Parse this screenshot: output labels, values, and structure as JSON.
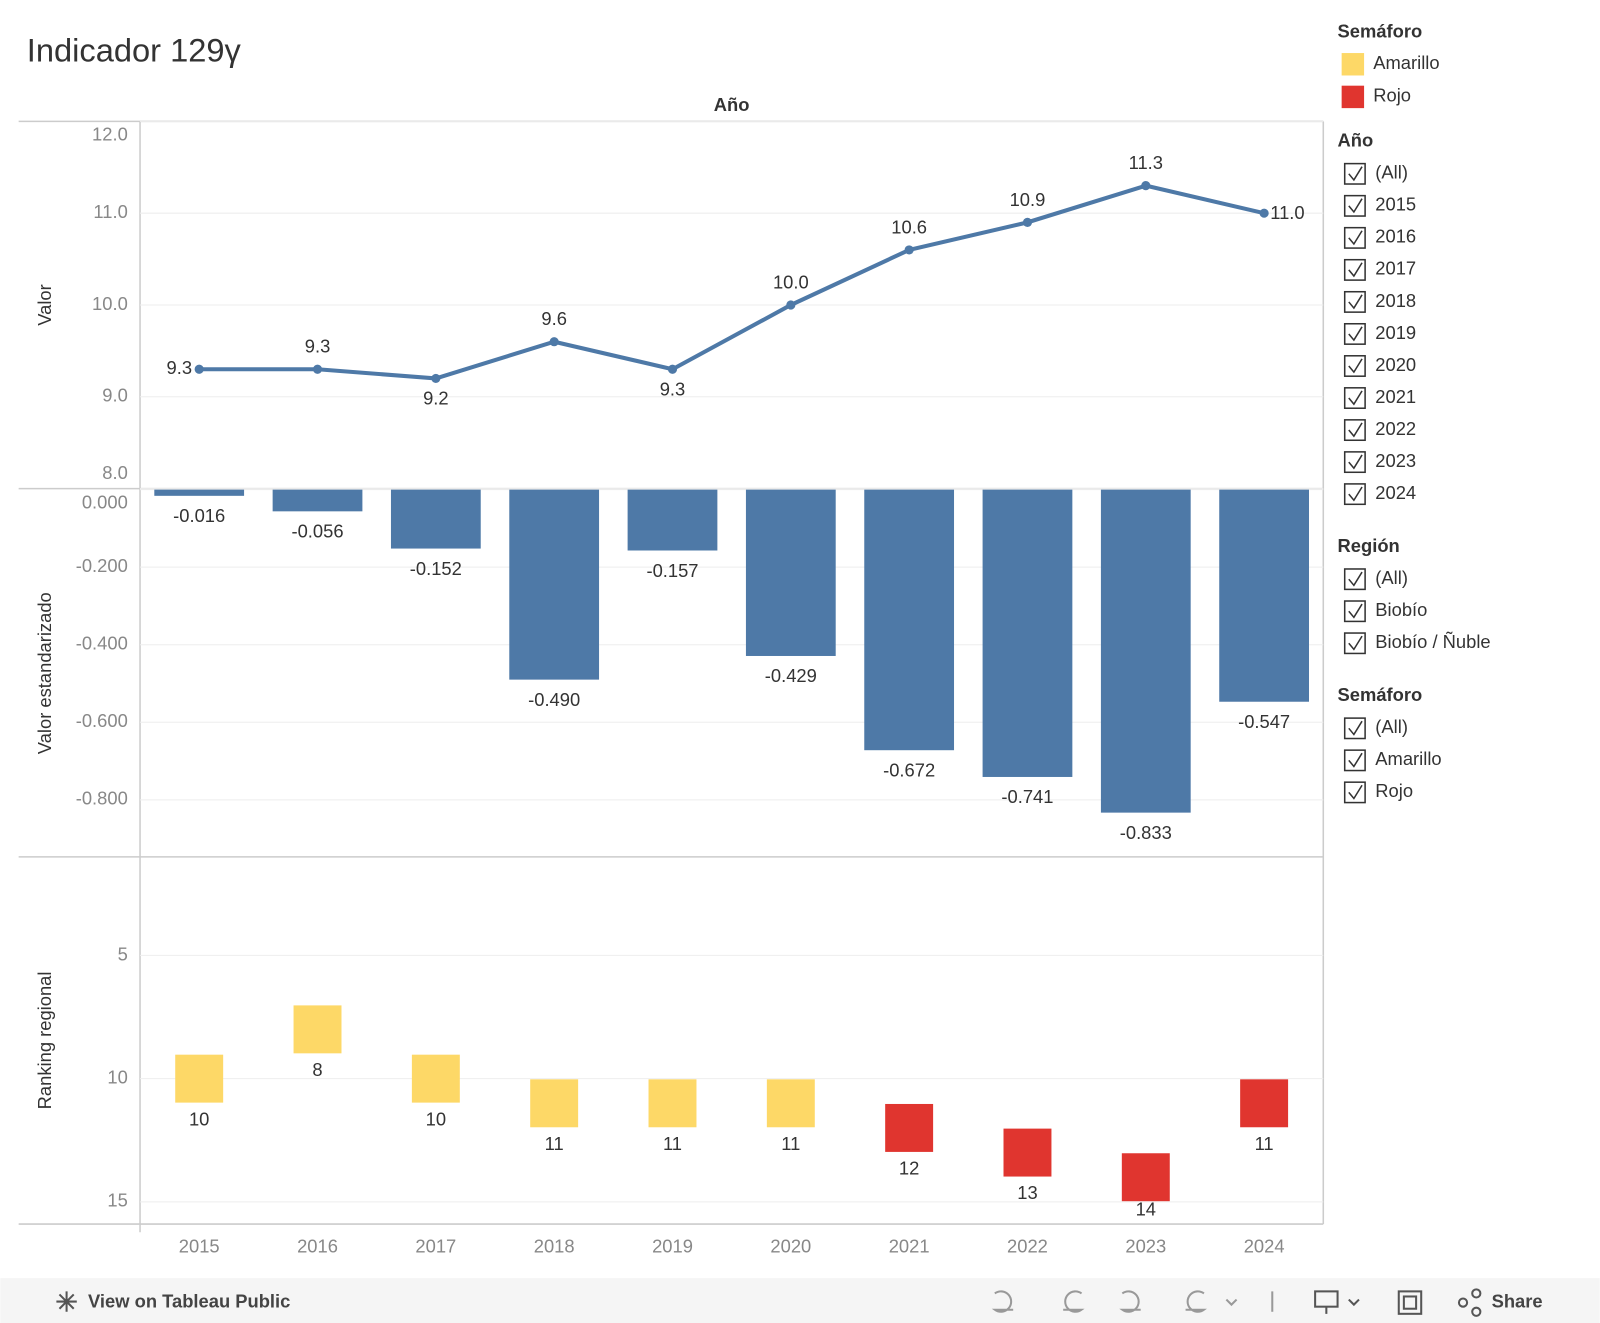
{
  "title": "Indicador 129γ",
  "column_header": "Año",
  "chart_data": [
    {
      "type": "line",
      "y_label": "Valor",
      "color": "#4e79a7",
      "categories": [
        "2015",
        "2016",
        "2017",
        "2018",
        "2019",
        "2020",
        "2021",
        "2022",
        "2023",
        "2024"
      ],
      "values": [
        9.3,
        9.3,
        9.2,
        9.6,
        9.3,
        10.0,
        10.6,
        10.9,
        11.3,
        11.0
      ],
      "value_labels": [
        "9.3",
        "9.3",
        "9.2",
        "9.6",
        "9.3",
        "10.0",
        "10.6",
        "10.9",
        "11.3",
        "11.0"
      ],
      "ylim": [
        8,
        12
      ],
      "yticks": [
        {
          "value": 8,
          "label": "8.0"
        },
        {
          "value": 9,
          "label": "9.0"
        },
        {
          "value": 10,
          "label": "10.0"
        },
        {
          "value": 11,
          "label": "11.0"
        },
        {
          "value": 12,
          "label": "12.0"
        }
      ],
      "grid": true
    },
    {
      "type": "bar",
      "y_label": "Valor estandarizado",
      "color": "#4e79a7",
      "categories": [
        "2015",
        "2016",
        "2017",
        "2018",
        "2019",
        "2020",
        "2021",
        "2022",
        "2023",
        "2024"
      ],
      "values": [
        -0.016,
        -0.056,
        -0.152,
        -0.49,
        -0.157,
        -0.429,
        -0.672,
        -0.741,
        -0.833,
        -0.547
      ],
      "value_labels": [
        "-0.016",
        "-0.056",
        "-0.152",
        "-0.490",
        "-0.157",
        "-0.429",
        "-0.672",
        "-0.741",
        "-0.833",
        "-0.547"
      ],
      "ylim": [
        -0.947,
        0
      ],
      "yticks": [
        {
          "value": 0,
          "label": "0.000"
        },
        {
          "value": -0.2,
          "label": "-0.200"
        },
        {
          "value": -0.4,
          "label": "-0.400"
        },
        {
          "value": -0.6,
          "label": "-0.600"
        },
        {
          "value": -0.8,
          "label": "-0.800"
        }
      ],
      "grid": true
    },
    {
      "type": "square",
      "y_label": "Ranking regional",
      "categories": [
        "2015",
        "2016",
        "2017",
        "2018",
        "2019",
        "2020",
        "2021",
        "2022",
        "2023",
        "2024"
      ],
      "values": [
        10,
        8,
        10,
        11,
        11,
        11,
        12,
        13,
        14,
        11
      ],
      "colors": [
        "#fdd867",
        "#fdd867",
        "#fdd867",
        "#fdd867",
        "#fdd867",
        "#fdd867",
        "#e0352f",
        "#e0352f",
        "#e0352f",
        "#e0352f"
      ],
      "ylim": [
        1,
        15.9
      ],
      "y_reversed": true,
      "yticks": [
        5,
        10,
        15
      ],
      "grid": true
    }
  ],
  "legend": {
    "title": "Semáforo",
    "items": [
      {
        "name": "Amarillo",
        "color": "#fdd867"
      },
      {
        "name": "Rojo",
        "color": "#e0352f"
      }
    ]
  },
  "filters": [
    {
      "title": "Año",
      "options": [
        "(All)",
        "2015",
        "2016",
        "2017",
        "2018",
        "2019",
        "2020",
        "2021",
        "2022",
        "2023",
        "2024"
      ]
    },
    {
      "title": "Región",
      "options": [
        "(All)",
        "Biobío",
        "Biobío / Ñuble"
      ]
    },
    {
      "title": "Semáforo",
      "options": [
        "(All)",
        "Amarillo",
        "Rojo"
      ]
    }
  ],
  "toolbar": {
    "view": "View on Tableau Public",
    "share": "Share"
  }
}
